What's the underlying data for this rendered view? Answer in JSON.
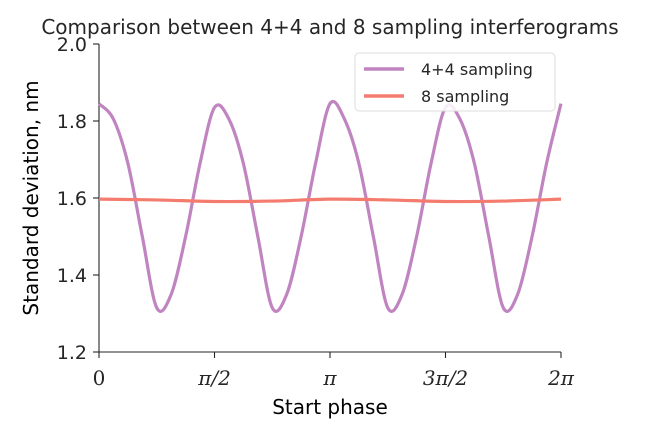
{
  "chart_data": {
    "type": "line",
    "title": "Comparison between 4+4 and 8 sampling interferograms",
    "xlabel": "Start phase",
    "ylabel": "Standard deviation, nm",
    "xlim": [
      0,
      6.283185
    ],
    "ylim": [
      1.2,
      2.0
    ],
    "yticks": [
      {
        "value": 1.2,
        "label": "1.2"
      },
      {
        "value": 1.4,
        "label": "1.4"
      },
      {
        "value": 1.6,
        "label": "1.6"
      },
      {
        "value": 1.8,
        "label": "1.8"
      },
      {
        "value": 2.0,
        "label": "2.0"
      }
    ],
    "xticks": [
      {
        "value": 0,
        "label": "0"
      },
      {
        "value": 1.570796,
        "label": "π/2"
      },
      {
        "value": 3.141593,
        "label": "π"
      },
      {
        "value": 4.712389,
        "label": "3π/2"
      },
      {
        "value": 6.283185,
        "label": "2π"
      }
    ],
    "grid": false,
    "legend": "top-right",
    "series": [
      {
        "name": "4+4 sampling",
        "color": "#c084c0",
        "x": [
          0,
          0.196,
          0.393,
          0.589,
          0.785,
          0.982,
          1.178,
          1.374,
          1.571,
          1.767,
          1.963,
          2.16,
          2.356,
          2.553,
          2.749,
          2.945,
          3.142,
          3.338,
          3.534,
          3.731,
          3.927,
          4.123,
          4.32,
          4.516,
          4.712,
          4.909,
          5.105,
          5.301,
          5.498,
          5.694,
          5.89,
          6.087,
          6.283
        ],
        "y": [
          1.845,
          1.805,
          1.69,
          1.5,
          1.315,
          1.35,
          1.5,
          1.69,
          1.835,
          1.805,
          1.69,
          1.5,
          1.315,
          1.35,
          1.5,
          1.69,
          1.845,
          1.805,
          1.69,
          1.5,
          1.315,
          1.35,
          1.5,
          1.69,
          1.835,
          1.805,
          1.69,
          1.5,
          1.315,
          1.35,
          1.5,
          1.69,
          1.845
        ]
      },
      {
        "name": "8 sampling",
        "color": "#f47c6e",
        "x": [
          0,
          0.785,
          1.571,
          2.356,
          3.142,
          3.927,
          4.712,
          5.498,
          6.283
        ],
        "y": [
          1.597,
          1.595,
          1.591,
          1.592,
          1.597,
          1.595,
          1.591,
          1.592,
          1.597
        ]
      }
    ]
  }
}
